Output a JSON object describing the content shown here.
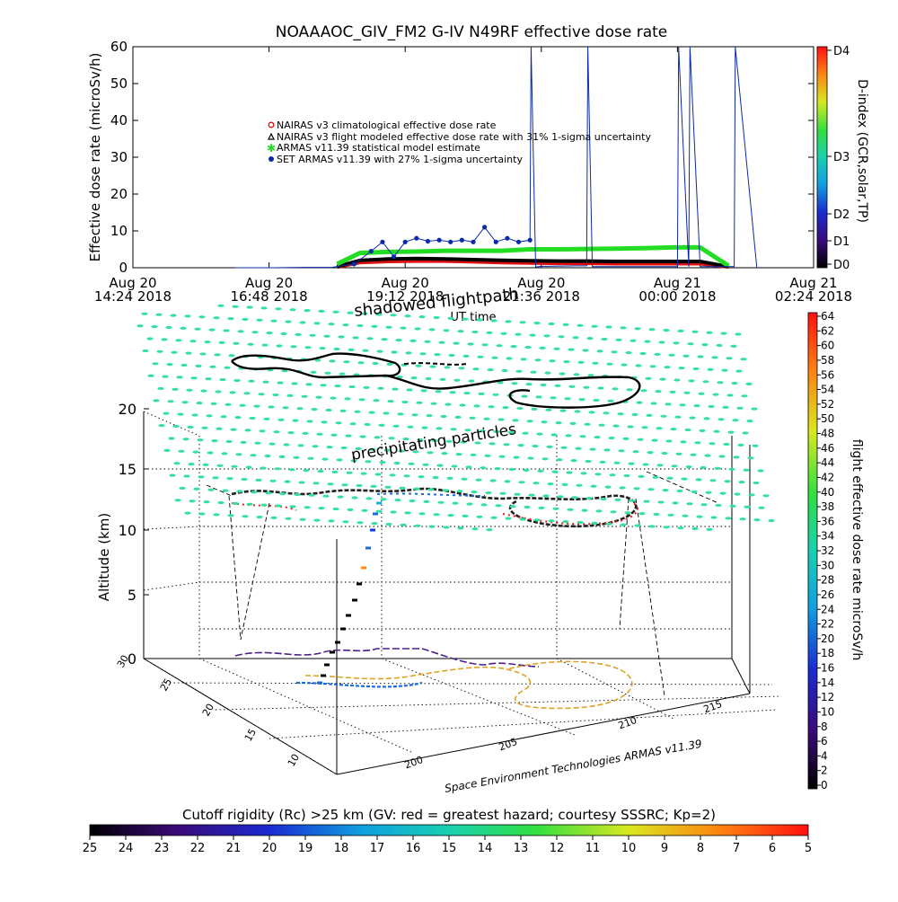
{
  "colors": {
    "nairas_clim": "#e01010",
    "nairas_flight": "#000000",
    "armas_stat": "#22dd22",
    "set_armas": "#0a2aa8",
    "flightpath": "#000000",
    "particles": "#33e0a0"
  },
  "chart_data": [
    {
      "type": "line",
      "title": "NOAAAOC_GIV_FM2  G-IV    N49RF   effective dose rate",
      "xlabel": "UT time",
      "ylabel": "Effective dose rate (microSv/h)",
      "ylim": [
        0,
        60
      ],
      "yticks": [
        0,
        10,
        20,
        30,
        40,
        50,
        60
      ],
      "x_tick_labels": [
        {
          "day": "Aug 20",
          "time": "14:24 2018"
        },
        {
          "day": "Aug 20",
          "time": "16:48 2018"
        },
        {
          "day": "Aug 20",
          "time": "19:12 2018"
        },
        {
          "day": "Aug 20",
          "time": "21:36 2018"
        },
        {
          "day": "Aug 21",
          "time": "00:00 2018"
        },
        {
          "day": "Aug 21",
          "time": "02:24 2018"
        }
      ],
      "xlim_hours": [
        0,
        12
      ],
      "legend": [
        "NAIRAS v3 climatological effective dose rate",
        "NAIRAS v3 flight modeled effective dose rate with 31% 1-sigma uncertainty",
        "ARMAS v11.39 statistical model estimate",
        "SET ARMAS v11.39 with 27% 1-sigma uncertainty"
      ],
      "legend_position": "upper-center",
      "right_axis": {
        "label": "D-index (GCR,solar,TP)",
        "tick_labels": [
          "D0",
          "D1",
          "D2",
          "D3",
          "D4"
        ]
      },
      "series": [
        {
          "key": "nairas_clim",
          "x": [
            3.6,
            4.0,
            4.5,
            5.0,
            5.5,
            6.0,
            6.5,
            7.0,
            7.5,
            8.0,
            8.5,
            9.0,
            9.5,
            10.0,
            10.5
          ],
          "y": [
            0.2,
            1.4,
            1.7,
            1.8,
            1.8,
            1.6,
            1.4,
            1.3,
            1.2,
            1.2,
            1.1,
            1.1,
            1.1,
            1.1,
            0.2
          ]
        },
        {
          "key": "nairas_flight",
          "x": [
            3.6,
            4.0,
            4.5,
            5.0,
            5.5,
            6.0,
            6.5,
            7.0,
            7.5,
            8.0,
            8.5,
            9.0,
            9.5,
            10.0,
            10.5
          ],
          "y": [
            0.3,
            2.0,
            2.4,
            2.5,
            2.4,
            2.2,
            2.0,
            1.9,
            1.8,
            1.8,
            1.7,
            1.7,
            1.7,
            1.7,
            0.3
          ]
        },
        {
          "key": "armas_stat",
          "x": [
            3.6,
            4.0,
            4.5,
            5.0,
            5.5,
            6.0,
            6.5,
            7.0,
            7.5,
            8.0,
            8.5,
            9.0,
            9.5,
            10.0,
            10.5
          ],
          "y": [
            1.0,
            4.0,
            4.3,
            4.4,
            4.6,
            4.6,
            4.6,
            5.0,
            5.0,
            5.1,
            5.2,
            5.3,
            5.5,
            5.5,
            0.5
          ]
        },
        {
          "key": "set_armas",
          "x": [
            1.8,
            2.5,
            3.0,
            3.5,
            3.9,
            4.2,
            4.4,
            4.6,
            4.8,
            5.0,
            5.2,
            5.4,
            5.6,
            5.8,
            6.0,
            6.2,
            6.4,
            6.6,
            6.8,
            7.0,
            7.02,
            7.1,
            7.2,
            7.3,
            7.8,
            8.0,
            8.02,
            8.1,
            8.2,
            8.4,
            8.6,
            8.8,
            9.0,
            9.6,
            9.62,
            9.8,
            9.82,
            10.0,
            10.2,
            10.4,
            10.6,
            10.62,
            11.0
          ],
          "y": [
            0,
            0,
            0.1,
            0.1,
            1.0,
            4.5,
            7.0,
            3.0,
            7.0,
            8.0,
            7.2,
            7.5,
            7.0,
            7.5,
            7.0,
            11.0,
            7.0,
            8.0,
            7.0,
            7.5,
            62,
            0.2,
            0.4,
            0.4,
            0.5,
            0.5,
            62,
            0.3,
            0.3,
            0.3,
            0.3,
            0.3,
            0.3,
            0.3,
            62,
            0.3,
            62,
            0.3,
            0.3,
            0.3,
            0.3,
            62,
            0
          ]
        }
      ]
    },
    {
      "type": "scatter",
      "title": "",
      "zlabel": "Altitude (km)",
      "zticks": [
        0,
        5,
        10,
        15,
        20
      ],
      "y_ticks": [
        10,
        15,
        20,
        25,
        30
      ],
      "x_ticks": [
        200,
        205,
        210,
        215
      ],
      "annotations": [
        "shadowed flightpath",
        "precipitating particles"
      ],
      "credit": "Space Environment Technologies ARMAS v11.39",
      "colorbar_right": {
        "label": "flight effective dose rate microSv/h",
        "range": [
          0,
          64
        ],
        "tick_labels": [
          0,
          2,
          4,
          6,
          8,
          10,
          12,
          14,
          16,
          18,
          20,
          22,
          24,
          26,
          28,
          30,
          32,
          34,
          36,
          38,
          40,
          42,
          44,
          46,
          48,
          50,
          52,
          54,
          56,
          58,
          60,
          62,
          64
        ]
      },
      "colorbar_bottom": {
        "label": "Cutoff rigidity (Rc) >25 km (GV: red = greatest hazard; courtesy SSSRC; Kp=2)",
        "range": [
          25,
          5
        ],
        "tick_labels": [
          25,
          24,
          23,
          22,
          21,
          20,
          19,
          18,
          17,
          16,
          15,
          14,
          13,
          12,
          11,
          10,
          9,
          8,
          7,
          6,
          5
        ]
      },
      "flight_track_altitude_km": 12.5,
      "particle_layer_altitude_km": 20
    }
  ]
}
